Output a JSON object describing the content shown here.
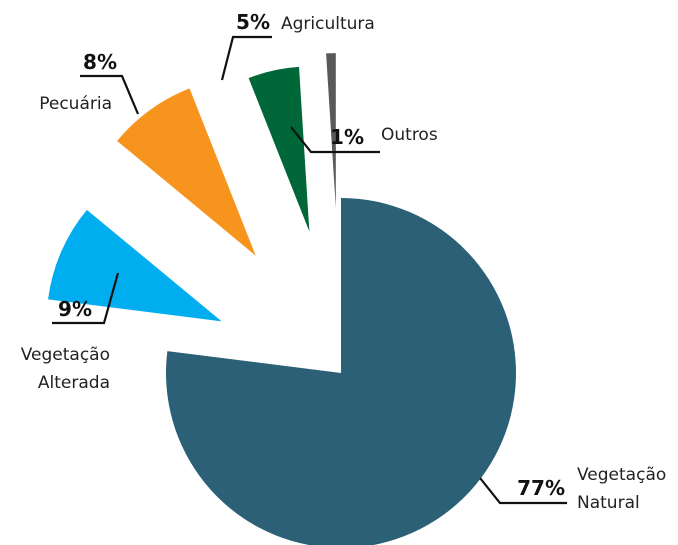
{
  "chart_data": {
    "type": "pie",
    "exploded": true,
    "slices": [
      {
        "key": "vn",
        "label": [
          "Vegetação",
          "Natural"
        ],
        "pct_label": "77%",
        "value": 77,
        "color": "#2b6077"
      },
      {
        "key": "va",
        "label": [
          "Vegetação",
          "Alterada"
        ],
        "pct_label": "9%",
        "value": 9,
        "color": "#00aeef"
      },
      {
        "key": "pe",
        "label": [
          "Pecuária"
        ],
        "pct_label": "8%",
        "value": 8,
        "color": "#f7941d"
      },
      {
        "key": "ag",
        "label": [
          "Agricultura"
        ],
        "pct_label": "5%",
        "value": 5,
        "color": "#006838"
      },
      {
        "key": "ou",
        "label": [
          "Outros"
        ],
        "pct_label": "1%",
        "value": 1,
        "color": "#58595b"
      }
    ]
  }
}
